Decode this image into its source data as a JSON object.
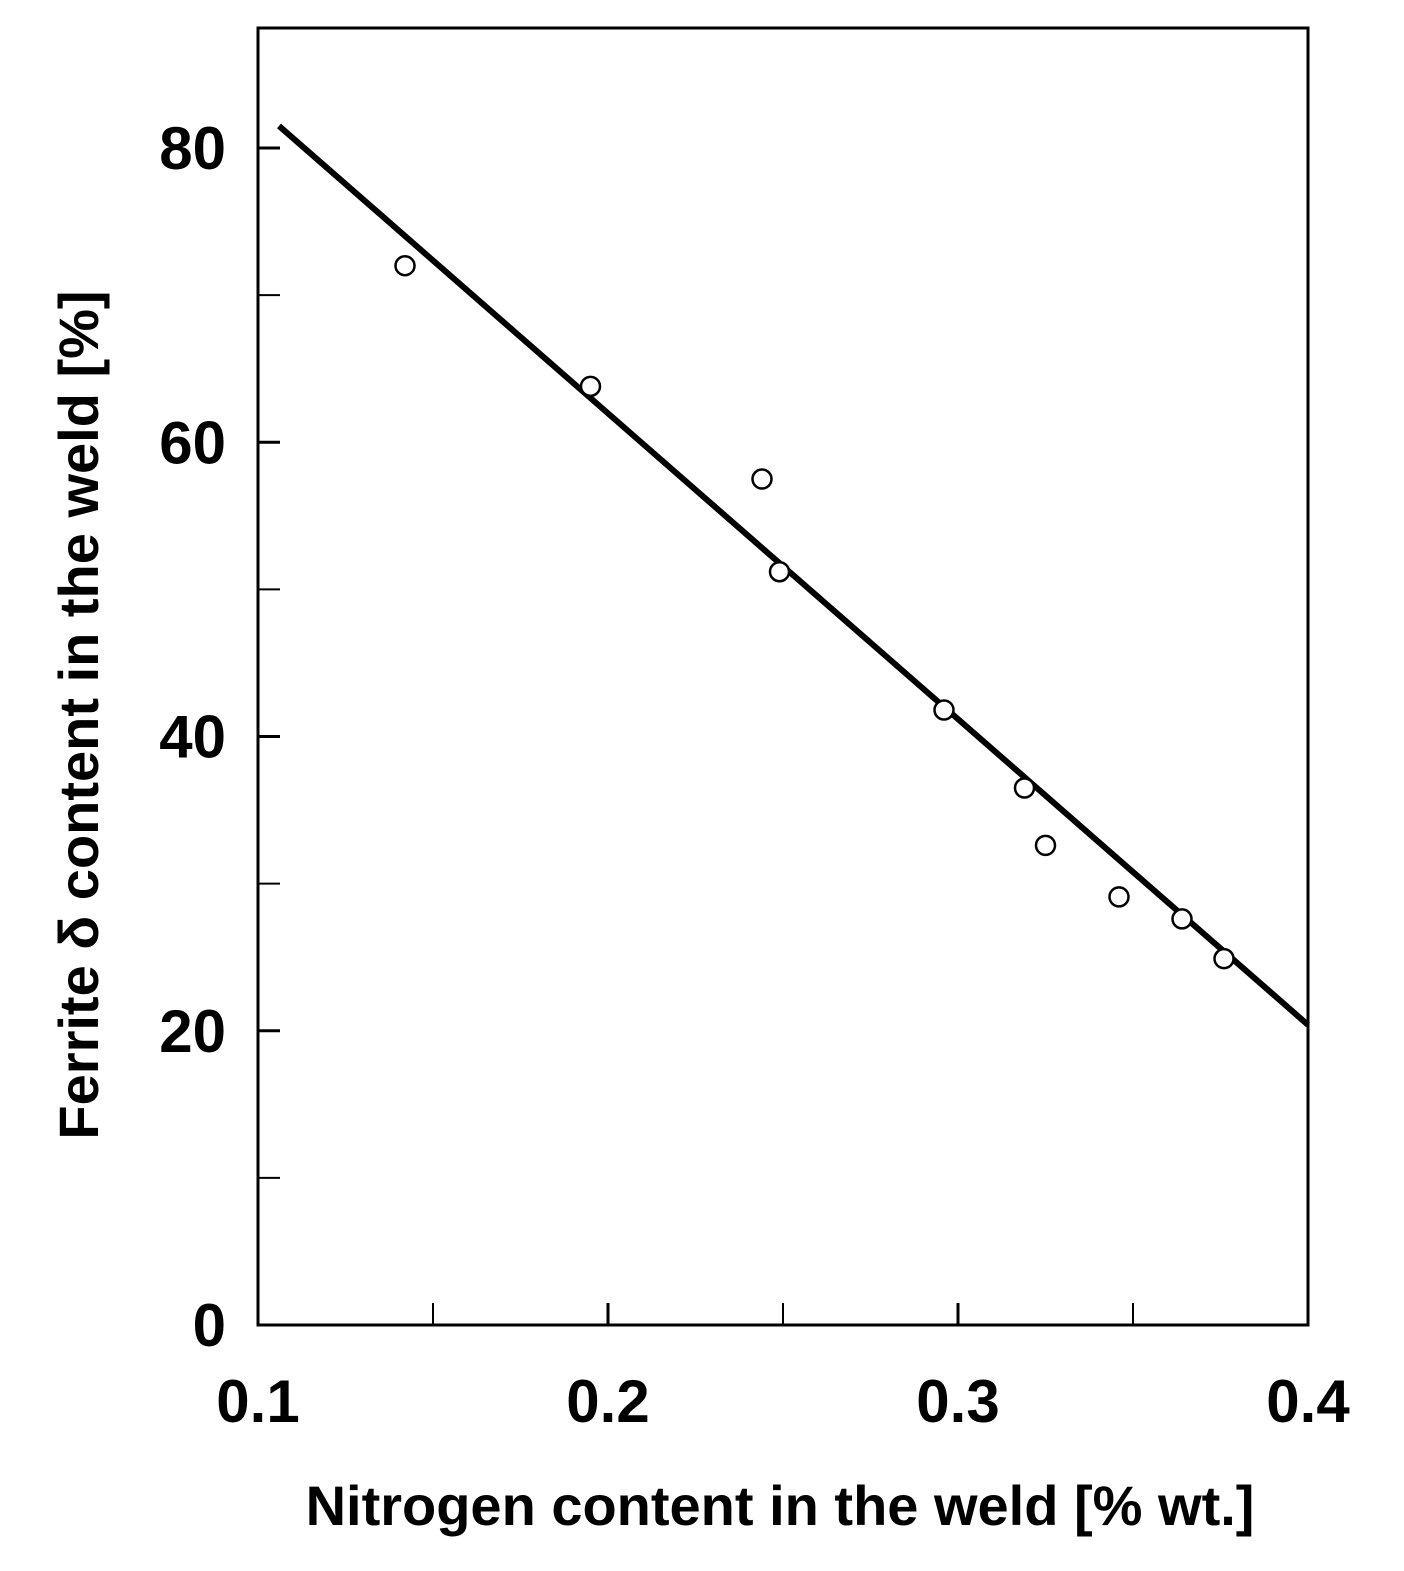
{
  "chart_data": {
    "type": "scatter",
    "title": "",
    "xlabel": "Nitrogen content in the weld [% wt.]",
    "ylabel": "Ferrite δ content in the weld [%]",
    "xlim": [
      0.1,
      0.4
    ],
    "ylim": [
      0,
      90
    ],
    "x_ticks": [
      0.1,
      0.2,
      0.3,
      0.4
    ],
    "x_tick_labels": [
      "0.1",
      "0.2",
      "0.3",
      "0.4"
    ],
    "x_minor_ticks": [
      0.15,
      0.25,
      0.35
    ],
    "y_ticks": [
      0,
      20,
      40,
      60,
      80
    ],
    "y_tick_labels": [
      "0",
      "20",
      "40",
      "60",
      "80"
    ],
    "y_minor_ticks": [
      10,
      30,
      50,
      70
    ],
    "grid": false,
    "series": [
      {
        "marker": "open-circle",
        "x": [
          0.142,
          0.195,
          0.244,
          0.249,
          0.296,
          0.319,
          0.325,
          0.346,
          0.364,
          0.376
        ],
        "y": [
          72,
          63.8,
          57.5,
          51.2,
          41.8,
          36.5,
          32.6,
          29.1,
          27.6,
          24.9
        ]
      }
    ],
    "fit_line": {
      "x": [
        0.106,
        0.4
      ],
      "y": [
        81.5,
        20.4
      ]
    }
  }
}
